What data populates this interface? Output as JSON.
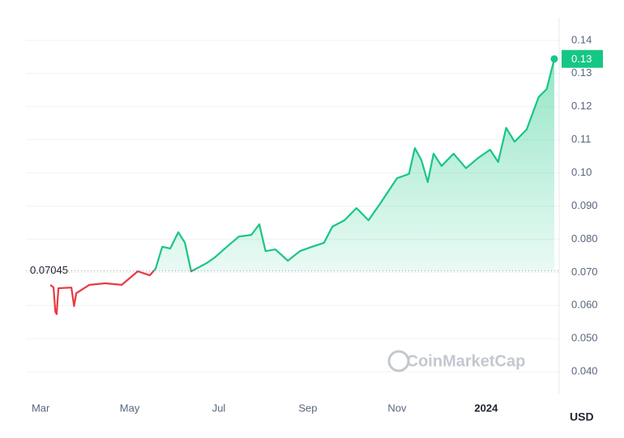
{
  "chart_data": {
    "type": "line",
    "xlim": [
      -0.33,
      11.64
    ],
    "xticks": [
      {
        "value": 0,
        "label": "Mar"
      },
      {
        "value": 2,
        "label": "May"
      },
      {
        "value": 4,
        "label": "Jul"
      },
      {
        "value": 6,
        "label": "Sep"
      },
      {
        "value": 8,
        "label": "Nov"
      },
      {
        "value": 10,
        "label": "2024"
      }
    ],
    "ylim": [
      0.0332,
      0.1468
    ],
    "yticks": [
      0.14,
      0.13,
      0.12,
      0.11,
      {
        "value": 0.1,
        "label": "0.10"
      },
      {
        "value": 0.09,
        "label": "0.090"
      },
      {
        "value": 0.08,
        "label": "0.080"
      },
      {
        "value": 0.07,
        "label": "0.070"
      },
      {
        "value": 0.06,
        "label": "0.060"
      },
      {
        "value": 0.05,
        "label": "0.050"
      },
      {
        "value": 0.04,
        "label": "0.040"
      }
    ],
    "grid": true,
    "y_axis_label": "USD",
    "reference": {
      "value": 0.07045,
      "label": "0.07045"
    },
    "current_price_label": "0.13",
    "watermark": "CoinMarketCap",
    "up_color": "#16c784",
    "down_color": "#ea3943",
    "series": [
      {
        "x": [
          0.22,
          0.29,
          0.33,
          0.36,
          0.4,
          0.69,
          0.75,
          0.8,
          1.09,
          1.45,
          1.82,
          2.18,
          2.45,
          2.58,
          2.73,
          2.91,
          3.09,
          3.24,
          3.38,
          3.55,
          3.73,
          3.91,
          4.18,
          4.45,
          4.73,
          4.91,
          5.05,
          5.27,
          5.55,
          5.82,
          6.09,
          6.36,
          6.55,
          6.82,
          7.09,
          7.36,
          7.64,
          8.0,
          8.27,
          8.4,
          8.55,
          8.69,
          8.82,
          9.0,
          9.27,
          9.55,
          9.82,
          10.09,
          10.27,
          10.45,
          10.64,
          10.91,
          11.18,
          11.36,
          11.53
        ],
        "values": [
          0.0662,
          0.0654,
          0.0581,
          0.0574,
          0.0652,
          0.0654,
          0.0598,
          0.0637,
          0.0662,
          0.0667,
          0.0662,
          0.0703,
          0.0691,
          0.0711,
          0.0777,
          0.0772,
          0.0821,
          0.0789,
          0.0703,
          0.0715,
          0.0728,
          0.0745,
          0.0777,
          0.0808,
          0.0813,
          0.0845,
          0.0764,
          0.0769,
          0.0735,
          0.0764,
          0.0777,
          0.0789,
          0.0838,
          0.0857,
          0.0894,
          0.0857,
          0.0911,
          0.0984,
          0.0997,
          0.1075,
          0.1038,
          0.0972,
          0.1058,
          0.1021,
          0.1058,
          0.1014,
          0.1045,
          0.107,
          0.1033,
          0.1136,
          0.1094,
          0.1131,
          0.1229,
          0.1253,
          0.1344
        ]
      }
    ]
  }
}
